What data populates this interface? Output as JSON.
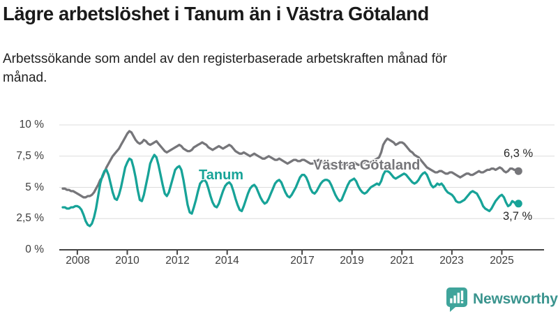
{
  "header": {
    "title": "Lägre arbetslöshet i Tanum än i Västra Götaland",
    "subtitle": "Arbetssökande som andel av den registerbaserade arbetskraften månad för månad."
  },
  "chart_data": {
    "type": "line",
    "unit": "percent",
    "frequency": "monthly",
    "start": {
      "year": 2007,
      "month": 6
    },
    "end": {
      "year": 2025,
      "month": 9
    },
    "ylim": [
      0,
      10.4
    ],
    "grid": "horizontal",
    "legend_position": "inline-labels",
    "y_tick_values": [
      10,
      7.5,
      5,
      2.5,
      0
    ],
    "y_tick_labels": [
      "10 %",
      "7,5 %",
      "5 %",
      "2,5 %",
      "0 %"
    ],
    "x_tick_years": [
      2008,
      2010,
      2012,
      2014,
      2017,
      2019,
      2021,
      2023,
      2025
    ],
    "x_tick_labels": [
      "2008",
      "2010",
      "2012",
      "2014",
      "2017",
      "2019",
      "2021",
      "2023",
      "2025"
    ],
    "series": [
      {
        "name": "Tanum",
        "color": "#17a398",
        "end_label": "3,7 %",
        "end_value": 3.7,
        "values": [
          3.4,
          3.4,
          3.3,
          3.3,
          3.4,
          3.4,
          3.5,
          3.5,
          3.4,
          3.2,
          2.8,
          2.3,
          2.0,
          1.9,
          2.1,
          2.6,
          3.3,
          4.3,
          5.3,
          5.9,
          6.3,
          6.4,
          6.0,
          5.3,
          4.6,
          4.1,
          4.0,
          4.4,
          5.0,
          5.8,
          6.6,
          7.0,
          7.3,
          7.2,
          6.6,
          5.8,
          4.8,
          4.0,
          3.9,
          4.4,
          5.2,
          6.0,
          6.9,
          7.3,
          7.6,
          7.4,
          6.8,
          6.0,
          5.2,
          4.5,
          4.3,
          4.6,
          5.2,
          5.8,
          6.4,
          6.6,
          6.7,
          6.4,
          5.6,
          4.6,
          3.6,
          3.0,
          2.9,
          3.4,
          4.0,
          4.7,
          5.3,
          5.5,
          5.6,
          5.4,
          4.9,
          4.3,
          3.8,
          3.5,
          3.4,
          3.7,
          4.2,
          4.7,
          5.1,
          5.3,
          5.4,
          5.2,
          4.7,
          4.1,
          3.6,
          3.2,
          3.1,
          3.5,
          4.0,
          4.5,
          4.9,
          5.1,
          5.2,
          5.0,
          4.6,
          4.2,
          3.9,
          3.7,
          3.8,
          4.1,
          4.5,
          4.9,
          5.3,
          5.5,
          5.6,
          5.4,
          5.0,
          4.6,
          4.3,
          4.2,
          4.4,
          4.7,
          5.0,
          5.4,
          5.8,
          6.0,
          6.0,
          5.8,
          5.4,
          4.9,
          4.6,
          4.5,
          4.7,
          5.0,
          5.3,
          5.5,
          5.6,
          5.6,
          5.5,
          5.2,
          4.8,
          4.4,
          4.1,
          3.9,
          4.0,
          4.4,
          4.8,
          5.2,
          5.5,
          5.6,
          5.7,
          5.5,
          5.1,
          4.8,
          4.6,
          4.5,
          4.6,
          4.8,
          5.0,
          5.1,
          5.2,
          5.3,
          5.2,
          5.5,
          6.0,
          6.3,
          6.3,
          6.2,
          6.0,
          5.8,
          5.7,
          5.8,
          5.9,
          6.0,
          6.1,
          6.0,
          5.8,
          5.6,
          5.4,
          5.3,
          5.4,
          5.6,
          5.9,
          6.1,
          6.2,
          6.0,
          5.6,
          5.2,
          5.0,
          5.1,
          5.3,
          5.2,
          5.3,
          5.1,
          4.8,
          4.6,
          4.5,
          4.4,
          4.2,
          3.9,
          3.8,
          3.8,
          3.9,
          4.0,
          4.2,
          4.4,
          4.6,
          4.7,
          4.6,
          4.5,
          4.2,
          3.9,
          3.5,
          3.3,
          3.2,
          3.1,
          3.3,
          3.6,
          3.9,
          4.1,
          4.3,
          4.4,
          4.2,
          3.8,
          3.5,
          3.6,
          3.9,
          3.8,
          3.6,
          3.7
        ]
      },
      {
        "name": "Västra Götaland",
        "color": "#76767a",
        "end_label": "6,3 %",
        "end_value": 6.3,
        "values": [
          4.9,
          4.9,
          4.8,
          4.8,
          4.7,
          4.7,
          4.6,
          4.5,
          4.4,
          4.3,
          4.2,
          4.2,
          4.3,
          4.3,
          4.4,
          4.6,
          4.9,
          5.2,
          5.6,
          5.8,
          6.2,
          6.6,
          6.9,
          7.2,
          7.5,
          7.7,
          7.9,
          8.1,
          8.4,
          8.7,
          9.0,
          9.3,
          9.5,
          9.4,
          9.1,
          8.8,
          8.6,
          8.5,
          8.6,
          8.8,
          8.7,
          8.5,
          8.4,
          8.5,
          8.6,
          8.7,
          8.5,
          8.3,
          8.1,
          7.9,
          7.8,
          7.9,
          8.0,
          8.1,
          8.2,
          8.3,
          8.4,
          8.3,
          8.1,
          8.0,
          7.9,
          7.9,
          8.0,
          8.2,
          8.3,
          8.4,
          8.5,
          8.6,
          8.5,
          8.4,
          8.2,
          8.1,
          8.0,
          8.1,
          8.2,
          8.3,
          8.2,
          8.1,
          8.2,
          8.3,
          8.4,
          8.3,
          8.1,
          7.9,
          7.8,
          7.7,
          7.7,
          7.8,
          7.7,
          7.6,
          7.5,
          7.6,
          7.7,
          7.6,
          7.5,
          7.4,
          7.3,
          7.3,
          7.4,
          7.5,
          7.4,
          7.3,
          7.2,
          7.2,
          7.3,
          7.2,
          7.1,
          7.0,
          6.9,
          7.0,
          7.1,
          7.2,
          7.2,
          7.1,
          7.1,
          7.2,
          7.2,
          7.1,
          7.0,
          6.9,
          6.9,
          7.0,
          7.1,
          7.2,
          7.1,
          7.0,
          7.0,
          7.0,
          6.9,
          6.8,
          6.7,
          6.6,
          6.6,
          6.7,
          6.8,
          6.9,
          6.8,
          6.8,
          6.9,
          6.9,
          7.0,
          6.9,
          6.8,
          6.8,
          6.9,
          7.0,
          7.1,
          7.0,
          7.0,
          7.1,
          7.2,
          7.3,
          7.4,
          7.8,
          8.4,
          8.7,
          8.9,
          8.8,
          8.7,
          8.6,
          8.4,
          8.5,
          8.6,
          8.6,
          8.5,
          8.3,
          8.1,
          7.9,
          7.8,
          7.6,
          7.5,
          7.4,
          7.2,
          7.0,
          6.8,
          6.6,
          6.5,
          6.4,
          6.3,
          6.2,
          6.2,
          6.3,
          6.3,
          6.2,
          6.1,
          6.1,
          6.2,
          6.2,
          6.1,
          6.0,
          5.9,
          5.8,
          5.9,
          6.0,
          6.1,
          6.1,
          6.0,
          6.0,
          6.1,
          6.2,
          6.3,
          6.2,
          6.2,
          6.3,
          6.4,
          6.4,
          6.5,
          6.5,
          6.4,
          6.5,
          6.6,
          6.5,
          6.3,
          6.2,
          6.3,
          6.5,
          6.5,
          6.4,
          6.4,
          6.3
        ]
      }
    ],
    "colors": {
      "grid": "#dcdcdc",
      "axis": "#444444",
      "tick_text": "#3c3c3c"
    }
  },
  "footer": {
    "brand": "Newsworthy",
    "brand_color": "#3a948e",
    "icon_color": "#3fa49b"
  }
}
